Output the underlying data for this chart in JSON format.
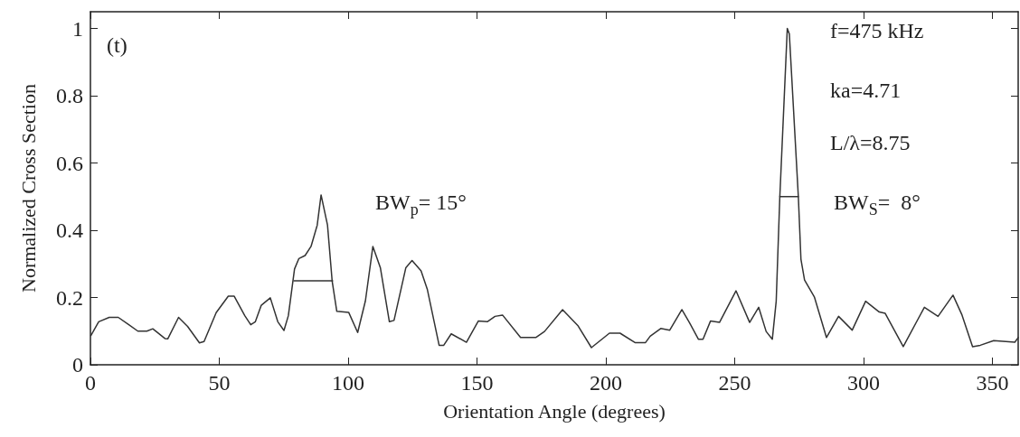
{
  "chart_data": {
    "type": "line",
    "xlabel": "Orientation Angle (degrees)",
    "ylabel": "Normalized Cross Section",
    "xlim": [
      0,
      360
    ],
    "xticks": [
      0,
      50,
      100,
      150,
      200,
      250,
      300,
      350
    ],
    "ylim": [
      0,
      1.05
    ],
    "yticks": [
      0,
      0.2,
      0.4,
      0.6,
      0.8,
      1
    ],
    "grid": false,
    "marker": "none",
    "line_style": "solid",
    "annotations": [
      "(t)",
      "f=475 kHz",
      "ka=4.71",
      "L/λ=8.75",
      "BW$_{p}$= 15°",
      "BW$_{S}$=  8°"
    ],
    "series": [
      {
        "color": "#333333",
        "x": [
          0.2,
          3.2,
          7.3,
          10.8,
          14.9,
          18.4,
          21.9,
          24.2,
          28.9,
          30,
          34.2,
          37.7,
          42.3,
          44.1,
          48.8,
          53.5,
          55.8,
          59.9,
          62.2,
          64,
          66.3,
          69.8,
          72.7,
          75.1,
          76.8,
          79.2,
          80.9,
          83.3,
          85.6,
          88,
          89.5,
          92,
          93.8,
          95.6,
          100.2,
          103.7,
          106.7,
          109.6,
          112.5,
          116,
          117.8,
          122.4,
          124.8,
          128.3,
          130.7,
          135.3,
          137.1,
          140,
          145.9,
          150.5,
          154,
          157,
          159.9,
          166.9,
          172.8,
          176.2,
          183.2,
          189.1,
          194.4,
          201.4,
          205.5,
          211.3,
          215.4,
          217.2,
          221.3,
          224.8,
          229.5,
          232.4,
          235.9,
          237.7,
          240.6,
          244.1,
          250.5,
          255.8,
          259.3,
          262.2,
          264.6,
          266.1,
          267.5,
          270.4,
          271.2,
          274.7,
          275.7,
          277.1,
          280.9,
          285.6,
          290.3,
          295.6,
          300.8,
          306.1,
          308.4,
          315.4,
          323.6,
          328.9,
          334.7,
          338.2,
          342.3,
          345.3,
          350.5,
          358.7,
          360
        ],
        "values": [
          0.087,
          0.128,
          0.141,
          0.141,
          0.119,
          0.1,
          0.1,
          0.107,
          0.078,
          0.077,
          0.141,
          0.114,
          0.065,
          0.069,
          0.155,
          0.204,
          0.204,
          0.146,
          0.119,
          0.128,
          0.177,
          0.199,
          0.128,
          0.102,
          0.146,
          0.285,
          0.316,
          0.325,
          0.352,
          0.415,
          0.505,
          0.415,
          0.249,
          0.159,
          0.156,
          0.096,
          0.19,
          0.352,
          0.289,
          0.128,
          0.132,
          0.289,
          0.31,
          0.279,
          0.225,
          0.058,
          0.058,
          0.092,
          0.067,
          0.13,
          0.128,
          0.144,
          0.148,
          0.081,
          0.081,
          0.099,
          0.164,
          0.117,
          0.051,
          0.094,
          0.094,
          0.066,
          0.066,
          0.085,
          0.108,
          0.103,
          0.164,
          0.126,
          0.076,
          0.076,
          0.13,
          0.126,
          0.22,
          0.126,
          0.171,
          0.099,
          0.076,
          0.189,
          0.499,
          1.0,
          0.984,
          0.499,
          0.314,
          0.252,
          0.202,
          0.081,
          0.144,
          0.103,
          0.189,
          0.157,
          0.153,
          0.054,
          0.171,
          0.144,
          0.207,
          0.148,
          0.054,
          0.058,
          0.072,
          0.067,
          0.081
        ]
      },
      {
        "color": "#333333",
        "x": [
          79,
          94
        ],
        "values": [
          0.25,
          0.25
        ]
      },
      {
        "color": "#333333",
        "x": [
          267.5,
          274.7
        ],
        "values": [
          0.5,
          0.5
        ]
      }
    ]
  }
}
